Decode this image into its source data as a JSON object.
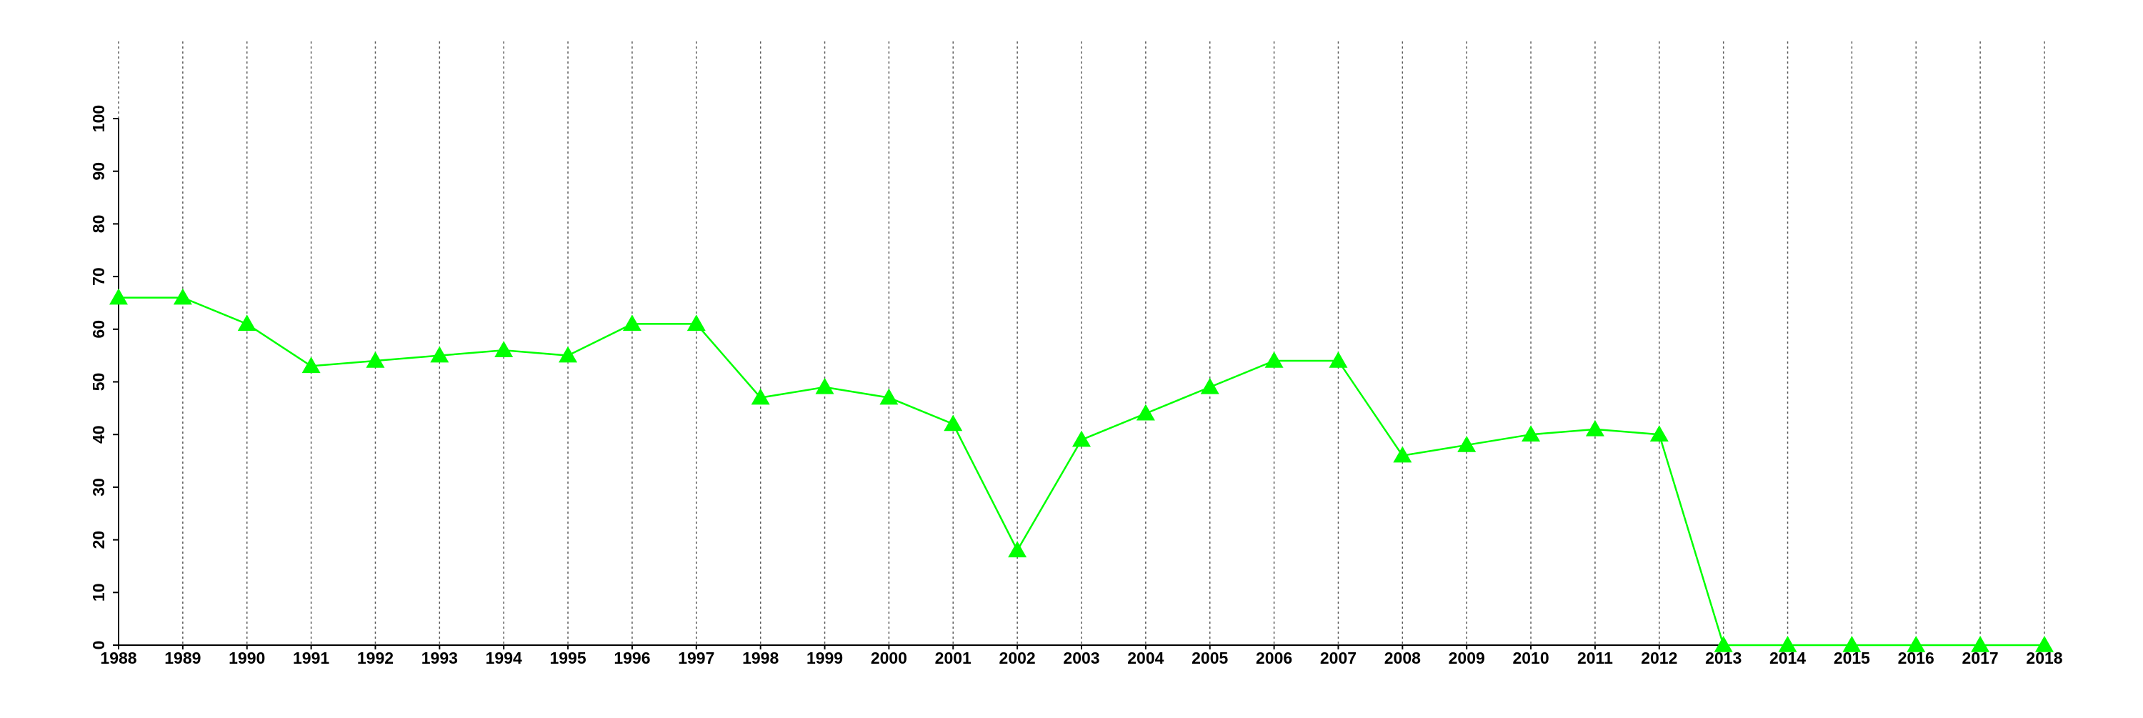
{
  "chart_data": {
    "type": "line",
    "x": [
      1988,
      1989,
      1990,
      1991,
      1992,
      1993,
      1994,
      1995,
      1996,
      1997,
      1998,
      1999,
      2000,
      2001,
      2002,
      2003,
      2004,
      2005,
      2006,
      2007,
      2008,
      2009,
      2010,
      2011,
      2012,
      2013,
      2014,
      2015,
      2016,
      2017,
      2018
    ],
    "values": [
      66,
      66,
      61,
      53,
      54,
      55,
      56,
      55,
      61,
      61,
      47,
      49,
      47,
      42,
      18,
      39,
      44,
      49,
      54,
      54,
      36,
      38,
      40,
      41,
      40,
      0,
      0,
      0,
      0,
      0,
      0
    ],
    "color": "#00ff00",
    "marker": "triangle",
    "xlim": [
      1988,
      2018
    ],
    "xticks": [
      1988,
      1989,
      1990,
      1991,
      1992,
      1993,
      1994,
      1995,
      1996,
      1997,
      1998,
      1999,
      2000,
      2001,
      2002,
      2003,
      2004,
      2005,
      2006,
      2007,
      2008,
      2009,
      2010,
      2011,
      2012,
      2013,
      2014,
      2015,
      2016,
      2017,
      2018
    ],
    "ylim": [
      0,
      100
    ],
    "yticks": [
      0,
      10,
      20,
      30,
      40,
      50,
      60,
      70,
      80,
      90,
      100
    ],
    "grid": true
  }
}
